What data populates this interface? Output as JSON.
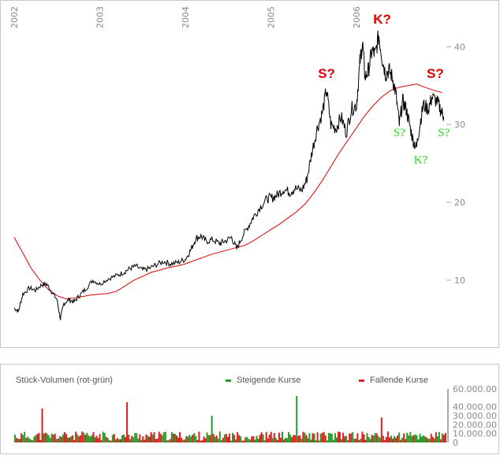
{
  "chart_data": [
    {
      "type": "line",
      "years": [
        "2002",
        "2003",
        "2004",
        "2005",
        "2006"
      ],
      "y_ticks": [
        10,
        20,
        30,
        40
      ],
      "ylim": [
        3,
        45
      ],
      "x_range": [
        2002.0,
        2007.05
      ],
      "grid": false,
      "series": [
        {
          "kind": "price",
          "color": "#000000",
          "points": [
            [
              2002.0,
              6.4
            ],
            [
              2002.05,
              6.0
            ],
            [
              2002.1,
              8.2
            ],
            [
              2002.18,
              9.0
            ],
            [
              2002.25,
              8.7
            ],
            [
              2002.32,
              9.4
            ],
            [
              2002.38,
              9.5
            ],
            [
              2002.44,
              8.5
            ],
            [
              2002.5,
              7.5
            ],
            [
              2002.54,
              5.0
            ],
            [
              2002.58,
              7.0
            ],
            [
              2002.64,
              7.5
            ],
            [
              2002.7,
              7.2
            ],
            [
              2002.76,
              8.0
            ],
            [
              2002.83,
              8.8
            ],
            [
              2002.92,
              10.0
            ],
            [
              2003.0,
              9.5
            ],
            [
              2003.1,
              10.2
            ],
            [
              2003.2,
              10.6
            ],
            [
              2003.28,
              11.0
            ],
            [
              2003.35,
              11.5
            ],
            [
              2003.42,
              11.8
            ],
            [
              2003.5,
              11.3
            ],
            [
              2003.58,
              11.5
            ],
            [
              2003.66,
              12.0
            ],
            [
              2003.75,
              12.4
            ],
            [
              2003.83,
              12.1
            ],
            [
              2003.92,
              12.3
            ],
            [
              2004.0,
              12.7
            ],
            [
              2004.06,
              13.8
            ],
            [
              2004.12,
              15.3
            ],
            [
              2004.18,
              15.7
            ],
            [
              2004.24,
              15.0
            ],
            [
              2004.32,
              15.2
            ],
            [
              2004.4,
              14.7
            ],
            [
              2004.46,
              15.0
            ],
            [
              2004.54,
              15.5
            ],
            [
              2004.6,
              14.0
            ],
            [
              2004.66,
              15.5
            ],
            [
              2004.74,
              17.0
            ],
            [
              2004.8,
              18.2
            ],
            [
              2004.88,
              19.5
            ],
            [
              2004.96,
              20.5
            ],
            [
              2005.02,
              20.6
            ],
            [
              2005.08,
              21.0
            ],
            [
              2005.15,
              21.7
            ],
            [
              2005.22,
              21.3
            ],
            [
              2005.28,
              21.8
            ],
            [
              2005.36,
              21.5
            ],
            [
              2005.42,
              23.0
            ],
            [
              2005.48,
              26.5
            ],
            [
              2005.54,
              29.5
            ],
            [
              2005.6,
              31.5
            ],
            [
              2005.65,
              34.5
            ],
            [
              2005.7,
              30.0
            ],
            [
              2005.76,
              29.5
            ],
            [
              2005.82,
              31.0
            ],
            [
              2005.88,
              29.0
            ],
            [
              2005.94,
              32.0
            ],
            [
              2006.0,
              32.5
            ],
            [
              2006.04,
              38.0
            ],
            [
              2006.07,
              40.5
            ],
            [
              2006.1,
              36.0
            ],
            [
              2006.14,
              37.0
            ],
            [
              2006.18,
              39.5
            ],
            [
              2006.22,
              39.0
            ],
            [
              2006.26,
              41.5
            ],
            [
              2006.3,
              38.5
            ],
            [
              2006.34,
              36.5
            ],
            [
              2006.38,
              37.0
            ],
            [
              2006.42,
              36.0
            ],
            [
              2006.46,
              34.0
            ],
            [
              2006.5,
              30.0
            ],
            [
              2006.54,
              33.0
            ],
            [
              2006.58,
              32.0
            ],
            [
              2006.62,
              30.0
            ],
            [
              2006.66,
              28.0
            ],
            [
              2006.7,
              27.0
            ],
            [
              2006.74,
              30.0
            ],
            [
              2006.78,
              32.5
            ],
            [
              2006.84,
              32.0
            ],
            [
              2006.88,
              33.5
            ],
            [
              2006.94,
              33.0
            ],
            [
              2006.98,
              32.0
            ],
            [
              2007.02,
              31.0
            ]
          ]
        },
        {
          "kind": "moving-average",
          "color": "#dd0000",
          "points": [
            [
              2002.0,
              15.5
            ],
            [
              2002.1,
              13.5
            ],
            [
              2002.2,
              11.5
            ],
            [
              2002.3,
              10.0
            ],
            [
              2002.4,
              8.8
            ],
            [
              2002.5,
              8.0
            ],
            [
              2002.6,
              7.6
            ],
            [
              2002.7,
              7.7
            ],
            [
              2002.8,
              7.9
            ],
            [
              2002.9,
              8.1
            ],
            [
              2003.0,
              8.2
            ],
            [
              2003.1,
              8.3
            ],
            [
              2003.2,
              8.6
            ],
            [
              2003.3,
              9.3
            ],
            [
              2003.4,
              10.0
            ],
            [
              2003.5,
              10.5
            ],
            [
              2003.6,
              11.0
            ],
            [
              2003.7,
              11.3
            ],
            [
              2003.8,
              11.6
            ],
            [
              2003.9,
              11.8
            ],
            [
              2004.0,
              12.1
            ],
            [
              2004.1,
              12.5
            ],
            [
              2004.2,
              12.9
            ],
            [
              2004.3,
              13.3
            ],
            [
              2004.4,
              13.6
            ],
            [
              2004.5,
              13.9
            ],
            [
              2004.6,
              14.2
            ],
            [
              2004.7,
              14.5
            ],
            [
              2004.8,
              15.1
            ],
            [
              2004.9,
              15.8
            ],
            [
              2005.0,
              16.5
            ],
            [
              2005.1,
              17.2
            ],
            [
              2005.2,
              18.0
            ],
            [
              2005.3,
              18.8
            ],
            [
              2005.4,
              19.8
            ],
            [
              2005.5,
              21.2
            ],
            [
              2005.6,
              22.8
            ],
            [
              2005.7,
              24.6
            ],
            [
              2005.8,
              26.4
            ],
            [
              2005.9,
              28.0
            ],
            [
              2006.0,
              29.6
            ],
            [
              2006.1,
              31.2
            ],
            [
              2006.2,
              32.5
            ],
            [
              2006.3,
              33.6
            ],
            [
              2006.4,
              34.4
            ],
            [
              2006.5,
              34.8
            ],
            [
              2006.6,
              35.0
            ],
            [
              2006.7,
              35.2
            ],
            [
              2006.8,
              34.8
            ],
            [
              2006.9,
              34.4
            ],
            [
              2007.0,
              34.1
            ]
          ]
        }
      ],
      "annotations": [
        {
          "text": "S?",
          "color": "#e00000",
          "x": 2005.65,
          "y": 36.0
        },
        {
          "text": "K?",
          "color": "#e00000",
          "x": 2006.3,
          "y": 43.0
        },
        {
          "text": "S?",
          "color": "#e00000",
          "x": 2006.92,
          "y": 36.0
        },
        {
          "text": "S?",
          "color": "#22dd22",
          "x": 2006.5,
          "y": 28.5
        },
        {
          "text": "S?",
          "color": "#22dd22",
          "x": 2007.02,
          "y": 28.5
        },
        {
          "text": "K?",
          "color": "#22dd22",
          "x": 2006.75,
          "y": 25.0
        }
      ]
    },
    {
      "type": "bar",
      "title": "Stück-Volumen (rot-grün)",
      "legend": [
        {
          "label": "Steigende Kurse",
          "color": "#2a9a2a"
        },
        {
          "label": "Fallende Kurse",
          "color": "#dd2222"
        }
      ],
      "y_ticks": [
        "60.000.00",
        "40.000.00",
        "30.000.00",
        "20.000.00",
        "10.000.00",
        "0"
      ],
      "y_tick_values": [
        60000000,
        40000000,
        30000000,
        20000000,
        10000000,
        0
      ],
      "ylim": [
        0,
        60000000
      ],
      "bar_count": 270,
      "typical_volume": 6500000,
      "spike_volumes": [
        38000000,
        45000000,
        30000000,
        52000000,
        28000000
      ]
    }
  ]
}
